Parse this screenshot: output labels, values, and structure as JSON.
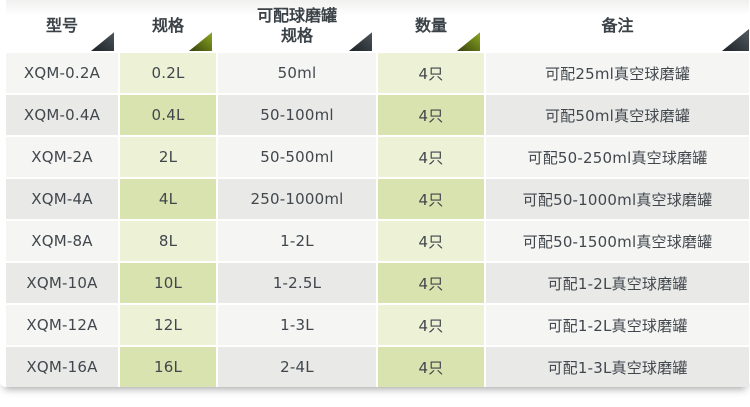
{
  "chart_data": {
    "type": "table",
    "title": "",
    "columns": [
      "型号",
      "规格",
      "可配球磨罐\n规格",
      "数量",
      "备注"
    ],
    "rows": [
      [
        "XQM-0.2A",
        "0.2L",
        "50ml",
        "4只",
        "可配25ml真空球磨罐"
      ],
      [
        "XQM-0.4A",
        "0.4L",
        "50-100ml",
        "4只",
        "可配50ml真空球磨罐"
      ],
      [
        "XQM-2A",
        "2L",
        "50-500ml",
        "4只",
        "可配50-250ml真空球磨罐"
      ],
      [
        "XQM-4A",
        "4L",
        "250-1000ml",
        "4只",
        "可配50-1000ml真空球磨罐"
      ],
      [
        "XQM-8A",
        "8L",
        "1-2L",
        "4只",
        "可配50-1500ml真空球磨罐"
      ],
      [
        "XQM-10A",
        "10L",
        "1-2.5L",
        "4只",
        "可配1-2L真空球磨罐"
      ],
      [
        "XQM-12A",
        "12L",
        "1-3L",
        "4只",
        "可配1-2L真空球磨罐"
      ],
      [
        "XQM-16A",
        "16L",
        "2-4L",
        "4只",
        "可配1-3L真空球磨罐"
      ]
    ],
    "layout": {
      "grid": false,
      "header_corner_accents": [
        "dark",
        "olive",
        "dark",
        "olive",
        "dark"
      ],
      "striped_rows": true
    },
    "colors": {
      "header_triangle_dark": "#2e353a",
      "header_triangle_olive": "#8aa21e",
      "row_green_light": "#edf2d7",
      "row_green_dark": "#d8e3b0",
      "row_gray_light": "#f5f5f4",
      "row_gray_dark": "#e9e9e8",
      "text": "#41474c"
    }
  }
}
